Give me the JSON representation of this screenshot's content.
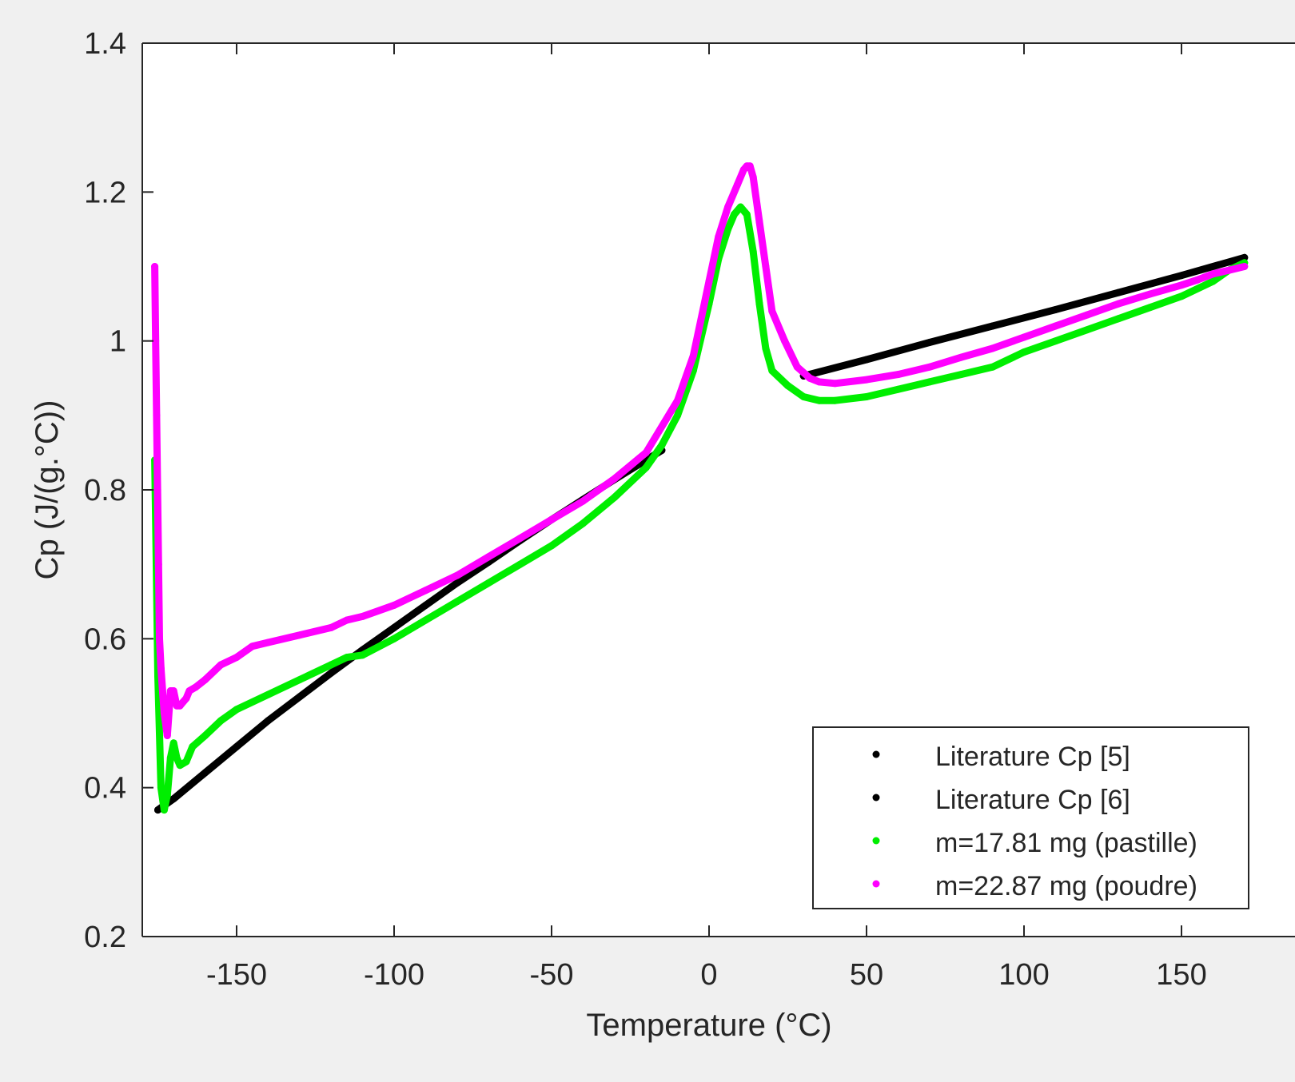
{
  "chart_data": {
    "type": "scatter",
    "title": "",
    "xlabel": "Temperature (°C)",
    "ylabel": "Cp (J/(g.°C))",
    "xlim": [
      -180,
      170
    ],
    "ylim": [
      0.2,
      1.4
    ],
    "xticks": [
      -150,
      -100,
      -50,
      0,
      50,
      100,
      150
    ],
    "xtick_labels": [
      "-150",
      "-100",
      "-50",
      "0",
      "50",
      "100",
      "150"
    ],
    "yticks": [
      0.2,
      0.4,
      0.6,
      0.8,
      1.0,
      1.2,
      1.4
    ],
    "ytick_labels": [
      "0.2",
      "0.4",
      "0.6",
      "0.8",
      "1",
      "1.2",
      "1.4"
    ],
    "grid": false,
    "legend_position": "bottom-right",
    "series": [
      {
        "name": "Literature Cp [5]",
        "color": "#000000",
        "x": [
          -175,
          -170,
          -160,
          -150,
          -140,
          -130,
          -120,
          -110,
          -100,
          -90,
          -80,
          -70,
          -60,
          -50,
          -40,
          -30,
          -20,
          -15
        ],
        "y": [
          0.37,
          0.385,
          0.42,
          0.455,
          0.49,
          0.522,
          0.554,
          0.585,
          0.615,
          0.645,
          0.675,
          0.703,
          0.732,
          0.76,
          0.787,
          0.814,
          0.84,
          0.853
        ]
      },
      {
        "name": "Literature Cp [6]",
        "color": "#000000",
        "x": [
          30,
          50,
          70,
          90,
          110,
          130,
          150,
          170
        ],
        "y": [
          0.953,
          0.975,
          0.998,
          1.02,
          1.042,
          1.065,
          1.088,
          1.112
        ]
      },
      {
        "name": "m=17.81 mg (pastille)",
        "color": "#00ee00",
        "x": [
          -176,
          -175.5,
          -175,
          -174,
          -173,
          -172,
          -171,
          -170,
          -169,
          -168,
          -166,
          -164,
          -160,
          -155,
          -150,
          -140,
          -130,
          -120,
          -115,
          -110,
          -100,
          -90,
          -80,
          -70,
          -60,
          -50,
          -40,
          -30,
          -20,
          -15,
          -10,
          -5,
          0,
          3,
          6,
          8,
          10,
          12,
          14,
          16,
          18,
          20,
          25,
          30,
          35,
          40,
          50,
          60,
          70,
          80,
          90,
          100,
          110,
          120,
          130,
          140,
          150,
          160,
          165,
          170
        ],
        "y": [
          0.84,
          0.7,
          0.55,
          0.4,
          0.37,
          0.39,
          0.44,
          0.46,
          0.44,
          0.43,
          0.435,
          0.455,
          0.47,
          0.49,
          0.505,
          0.525,
          0.545,
          0.565,
          0.575,
          0.578,
          0.6,
          0.625,
          0.65,
          0.675,
          0.7,
          0.725,
          0.755,
          0.79,
          0.83,
          0.86,
          0.9,
          0.96,
          1.05,
          1.11,
          1.15,
          1.17,
          1.18,
          1.17,
          1.12,
          1.05,
          0.99,
          0.96,
          0.94,
          0.925,
          0.92,
          0.92,
          0.925,
          0.935,
          0.945,
          0.955,
          0.965,
          0.985,
          1.0,
          1.015,
          1.03,
          1.045,
          1.06,
          1.08,
          1.095,
          1.105
        ]
      },
      {
        "name": "m=22.87 mg (poudre)",
        "color": "#ff00ff",
        "x": [
          -176,
          -175.7,
          -175.4,
          -175.1,
          -174.8,
          -174.5,
          -174,
          -173,
          -172,
          -171,
          -170,
          -169,
          -168,
          -167,
          -166,
          -165,
          -163,
          -160,
          -155,
          -150,
          -145,
          -140,
          -130,
          -120,
          -115,
          -110,
          -100,
          -90,
          -80,
          -70,
          -60,
          -50,
          -40,
          -30,
          -20,
          -10,
          -5,
          0,
          3,
          6,
          9,
          11,
          12,
          13,
          14,
          16,
          18,
          20,
          24,
          28,
          32,
          35,
          40,
          50,
          60,
          70,
          80,
          90,
          100,
          110,
          120,
          130,
          140,
          150,
          155,
          160,
          165,
          170
        ],
        "y": [
          1.1,
          1.0,
          0.9,
          0.8,
          0.7,
          0.6,
          0.56,
          0.5,
          0.47,
          0.53,
          0.53,
          0.51,
          0.51,
          0.515,
          0.52,
          0.53,
          0.535,
          0.545,
          0.565,
          0.575,
          0.59,
          0.595,
          0.605,
          0.615,
          0.625,
          0.63,
          0.645,
          0.665,
          0.685,
          0.71,
          0.735,
          0.76,
          0.785,
          0.815,
          0.85,
          0.92,
          0.98,
          1.08,
          1.14,
          1.18,
          1.21,
          1.23,
          1.235,
          1.235,
          1.22,
          1.16,
          1.1,
          1.04,
          1.0,
          0.965,
          0.95,
          0.945,
          0.943,
          0.948,
          0.955,
          0.965,
          0.978,
          0.99,
          1.005,
          1.02,
          1.035,
          1.05,
          1.063,
          1.075,
          1.082,
          1.09,
          1.095,
          1.1
        ]
      }
    ]
  }
}
